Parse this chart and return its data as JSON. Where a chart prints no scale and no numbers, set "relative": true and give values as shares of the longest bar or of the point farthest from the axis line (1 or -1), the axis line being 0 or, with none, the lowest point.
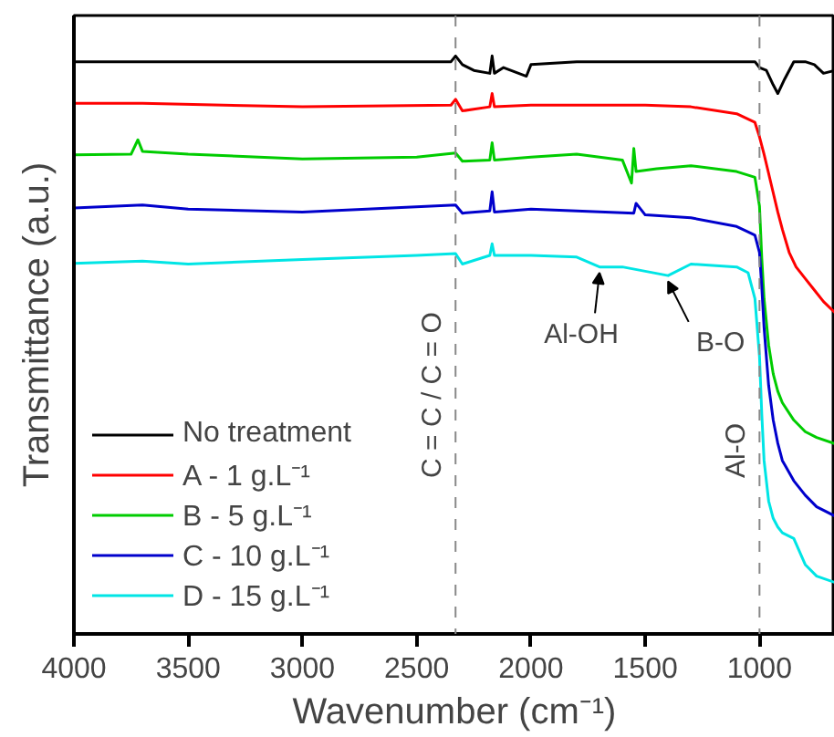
{
  "chart_data": {
    "type": "line",
    "relative": true,
    "xlabel": "Wavenumber (cm⁻¹)",
    "ylabel": "Transmittance (a.u.)",
    "xlim": [
      4000,
      670
    ],
    "xticks": [
      4000,
      3500,
      3000,
      2500,
      2000,
      1500,
      1000
    ],
    "grid": false,
    "legend": "bottom left",
    "line_style": "solid",
    "marker": "none",
    "series": [
      {
        "name": "No treatment",
        "color": "#000000",
        "x": [
          4000,
          3700,
          3400,
          3000,
          2600,
          2350,
          2330,
          2300,
          2250,
          2180,
          2170,
          2160,
          2120,
          2020,
          2000,
          1800,
          1500,
          1200,
          1020,
          1000,
          970,
          940,
          920,
          890,
          850,
          800,
          760,
          720,
          670
        ],
        "values": [
          0.99,
          0.99,
          0.99,
          0.99,
          0.99,
          0.99,
          1.0,
          0.985,
          0.975,
          0.97,
          1.0,
          0.97,
          0.98,
          0.965,
          0.985,
          0.99,
          0.99,
          0.99,
          0.99,
          0.98,
          0.975,
          0.95,
          0.935,
          0.96,
          0.99,
          0.99,
          0.985,
          0.97,
          0.975
        ]
      },
      {
        "name": "A - 1 g.L⁻¹",
        "color": "#ff0000",
        "x": [
          4000,
          3700,
          3000,
          2350,
          2330,
          2300,
          2180,
          2170,
          2160,
          2000,
          1500,
          1300,
          1100,
          1020,
          1000,
          980,
          950,
          920,
          900,
          870,
          840,
          800,
          760,
          720,
          670
        ],
        "values": [
          0.918,
          0.918,
          0.912,
          0.915,
          0.925,
          0.905,
          0.912,
          0.935,
          0.912,
          0.915,
          0.915,
          0.912,
          0.9,
          0.885,
          0.86,
          0.83,
          0.78,
          0.73,
          0.7,
          0.66,
          0.635,
          0.615,
          0.595,
          0.575,
          0.556
        ]
      },
      {
        "name": "B - 5 g.L⁻¹",
        "color": "#00cc00",
        "x": [
          4000,
          3750,
          3720,
          3700,
          3500,
          3000,
          2500,
          2330,
          2300,
          2180,
          2170,
          2160,
          2000,
          1800,
          1600,
          1560,
          1550,
          1540,
          1450,
          1300,
          1100,
          1020,
          1000,
          990,
          980,
          960,
          940,
          920,
          900,
          850,
          800,
          750,
          670
        ],
        "values": [
          0.829,
          0.83,
          0.855,
          0.835,
          0.83,
          0.822,
          0.825,
          0.832,
          0.818,
          0.82,
          0.85,
          0.82,
          0.825,
          0.83,
          0.82,
          0.78,
          0.84,
          0.8,
          0.805,
          0.81,
          0.8,
          0.79,
          0.74,
          0.65,
          0.58,
          0.5,
          0.45,
          0.42,
          0.4,
          0.37,
          0.35,
          0.34,
          0.329
        ]
      },
      {
        "name": "C - 10 g.L⁻¹",
        "color": "#0000cc",
        "x": [
          4000,
          3700,
          3500,
          3000,
          2330,
          2300,
          2180,
          2170,
          2160,
          2000,
          1550,
          1540,
          1500,
          1300,
          1100,
          1020,
          1000,
          990,
          980,
          960,
          940,
          920,
          900,
          850,
          800,
          750,
          670
        ],
        "values": [
          0.737,
          0.742,
          0.735,
          0.73,
          0.742,
          0.728,
          0.732,
          0.765,
          0.73,
          0.735,
          0.728,
          0.745,
          0.725,
          0.72,
          0.705,
          0.69,
          0.66,
          0.6,
          0.53,
          0.43,
          0.37,
          0.33,
          0.3,
          0.265,
          0.24,
          0.22,
          0.204
        ]
      },
      {
        "name": "D - 15 g.L⁻¹",
        "color": "#00e5e5",
        "x": [
          4000,
          3700,
          3500,
          3000,
          2500,
          2330,
          2300,
          2180,
          2170,
          2160,
          2000,
          1800,
          1700,
          1600,
          1400,
          1300,
          1100,
          1050,
          1020,
          1000,
          990,
          980,
          960,
          940,
          920,
          900,
          850,
          800,
          750,
          670
        ],
        "values": [
          0.641,
          0.645,
          0.64,
          0.648,
          0.655,
          0.658,
          0.64,
          0.655,
          0.675,
          0.655,
          0.655,
          0.652,
          0.635,
          0.635,
          0.62,
          0.64,
          0.635,
          0.625,
          0.58,
          0.48,
          0.38,
          0.3,
          0.23,
          0.2,
          0.185,
          0.175,
          0.165,
          0.12,
          0.1,
          0.089
        ]
      }
    ],
    "ref_lines": [
      {
        "axis": "x",
        "value": 2330,
        "label": "C = C / C = O",
        "color": "#888888",
        "line_style": "dashed"
      },
      {
        "axis": "x",
        "value": 1000,
        "label": "Al-O",
        "color": "#888888",
        "line_style": "dashed"
      }
    ],
    "annotations": [
      {
        "text": "Al-OH",
        "x": 1700,
        "y": 0.635
      },
      {
        "text": "B-O",
        "x": 1400,
        "y": 0.62
      }
    ]
  }
}
